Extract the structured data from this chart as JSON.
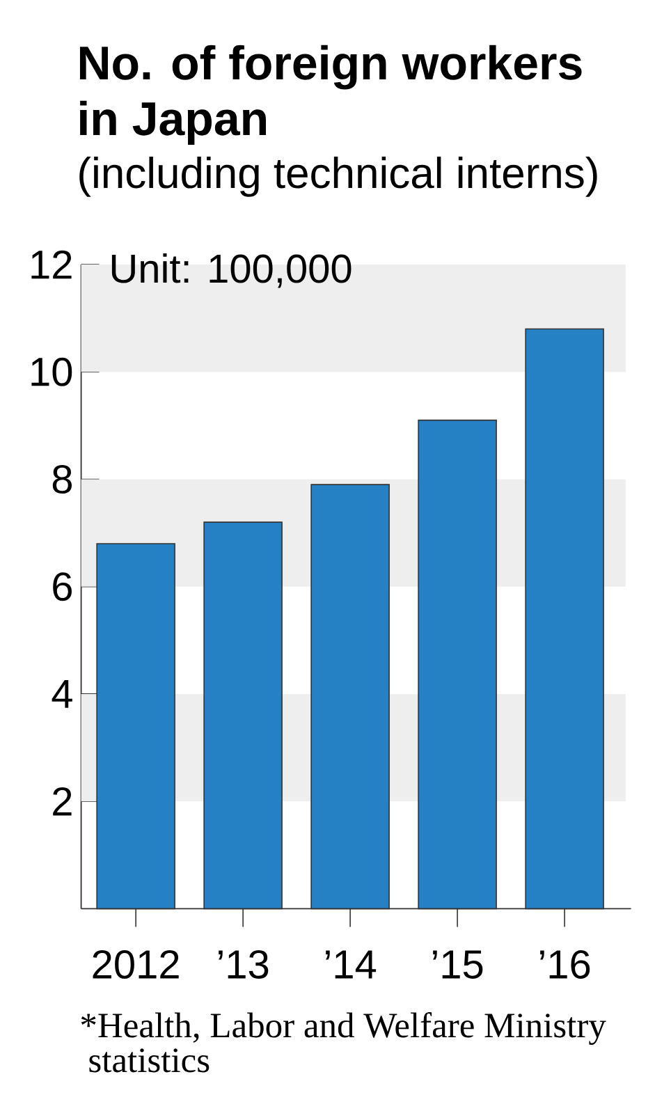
{
  "chart_data": {
    "type": "bar",
    "title": "No. of foreign workers in Japan",
    "subtitle": "(including technical interns)",
    "categories": [
      "2012",
      "’13",
      "’14",
      "’15",
      "’16"
    ],
    "values": [
      6.8,
      7.2,
      7.9,
      9.1,
      10.8
    ],
    "color": "#2580c4",
    "ylim": [
      0,
      12
    ],
    "yticks": [
      2,
      4,
      6,
      8,
      10,
      12
    ],
    "bands": [
      {
        "axis": "y",
        "from": 10,
        "to": 12,
        "color": "#eeeeee"
      },
      {
        "axis": "y",
        "from": 6,
        "to": 8,
        "color": "#eeeeee"
      },
      {
        "axis": "y",
        "from": 2,
        "to": 4,
        "color": "#eeeeee"
      }
    ],
    "annotations": [
      "Unit: 100,000",
      "*Health, Labor and Welfare Ministry statistics"
    ]
  }
}
